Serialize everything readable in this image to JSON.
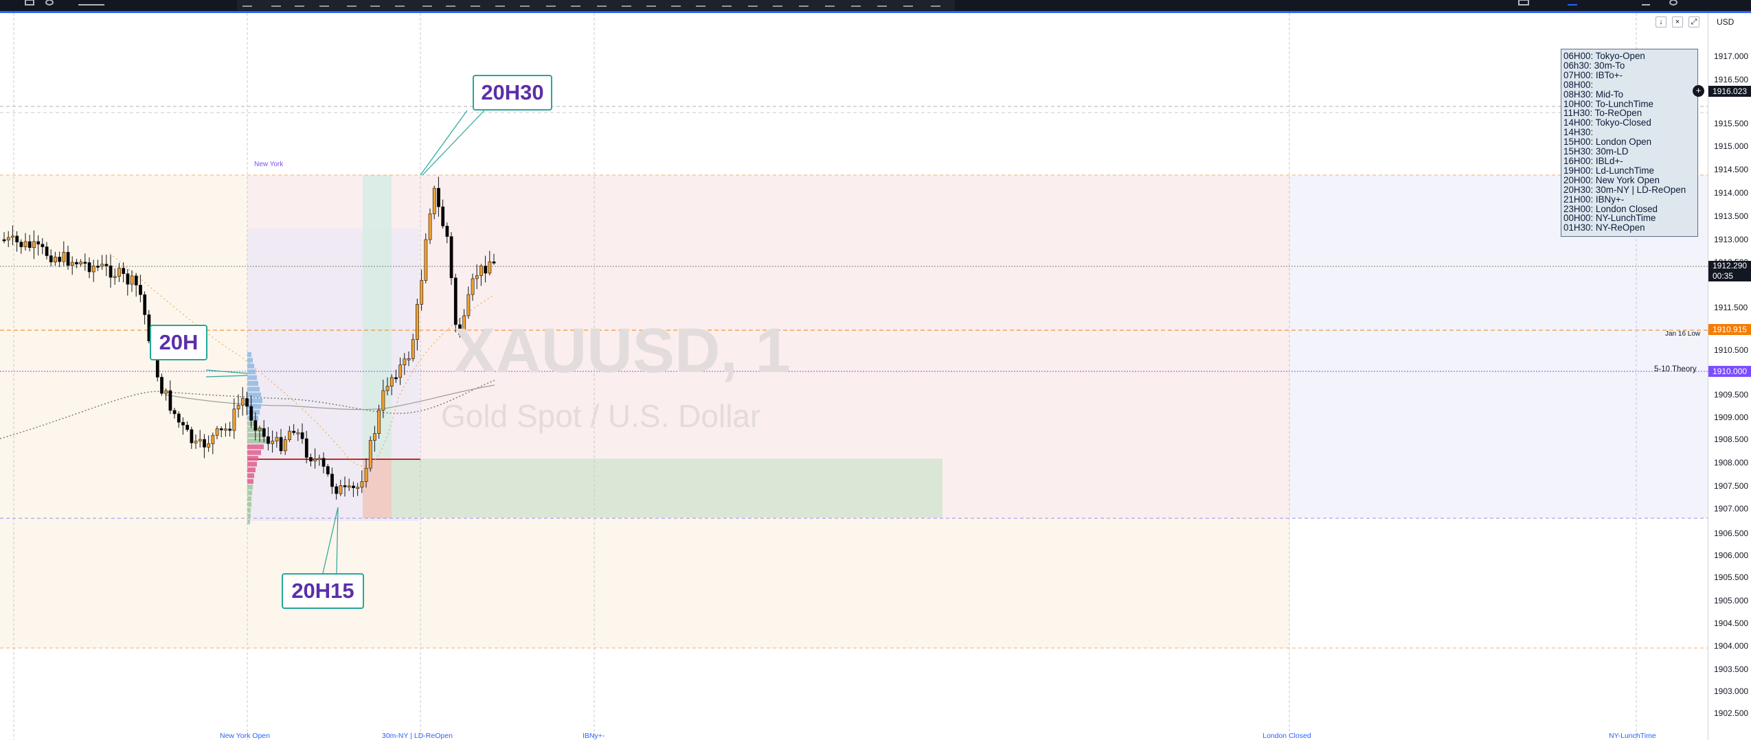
{
  "chart": {
    "symbol_watermark": "XAUUSD, 1",
    "description_watermark": "Gold Spot / U.S. Dollar",
    "currency": "USD",
    "session_box_label": "New York",
    "callouts": {
      "c20h": "20H",
      "c20h15": "20H15",
      "c20h30": "20H30"
    },
    "level_labels": {
      "jan16_low": "Jan 16 Low",
      "theory": "5-10 Theory"
    },
    "session_labels": {
      "ny_open": "New York Open",
      "ny_30m": "30m-NY  |  LD-ReOpen",
      "ibny": "IBNy+-",
      "london_closed": "London Closed",
      "ny_lunch": "NY-LunchTime"
    },
    "session_legend": [
      "06H00: Tokyo-Open",
      "06h30: 30m-To",
      "07H00: IBTo+-",
      "08H00:",
      "08H30: Mid-To",
      "10H00: To-LunchTime",
      "11H30: To-ReOpen",
      "14H00: Tokyo-Closed",
      "14H30:",
      "15H00: London Open",
      "15H30: 30m-LD",
      "16H00: IBLd+-",
      "19H00: Ld-LunchTime",
      "20H00: New York Open",
      "20H30: 30m-NY  |  LD-ReOpen",
      "21H00: IBNy+-",
      "23H00: London Closed",
      "00H00: NY-LunchTime",
      "01H30: NY-ReOpen"
    ]
  },
  "price_scale": {
    "ticks": [
      "1917.000",
      "1916.500",
      "1915.500",
      "1915.000",
      "1914.500",
      "1914.000",
      "1913.500",
      "1913.000",
      "1912.500",
      "1911.500",
      "1910.500",
      "1909.500",
      "1909.000",
      "1908.500",
      "1908.000",
      "1907.500",
      "1907.000",
      "1906.500",
      "1906.000",
      "1905.500",
      "1905.000",
      "1904.500",
      "1904.000",
      "1903.500",
      "1903.000",
      "1902.500"
    ],
    "tags": {
      "crosshair": "1916.023",
      "last_price": "1912.290",
      "countdown": "00:35",
      "jan16_low": "1910.915",
      "theory": "1910.000"
    }
  },
  "colors": {
    "toolbar": "#131722",
    "accent": "#2962ff",
    "bull": "#f0a030",
    "bear": "#000000",
    "theory_tag": "#7c4dff",
    "low_tag": "#f57c00",
    "callout_border": "#26a69a",
    "callout_text": "#5b2fa8"
  },
  "toolbar_icons": [
    "grid-icon",
    "indicators-icon",
    "replay-icon",
    "drawing-tools-icon",
    "trash-icon",
    "layout-icon",
    "alert-icon",
    "settings-icon"
  ]
}
